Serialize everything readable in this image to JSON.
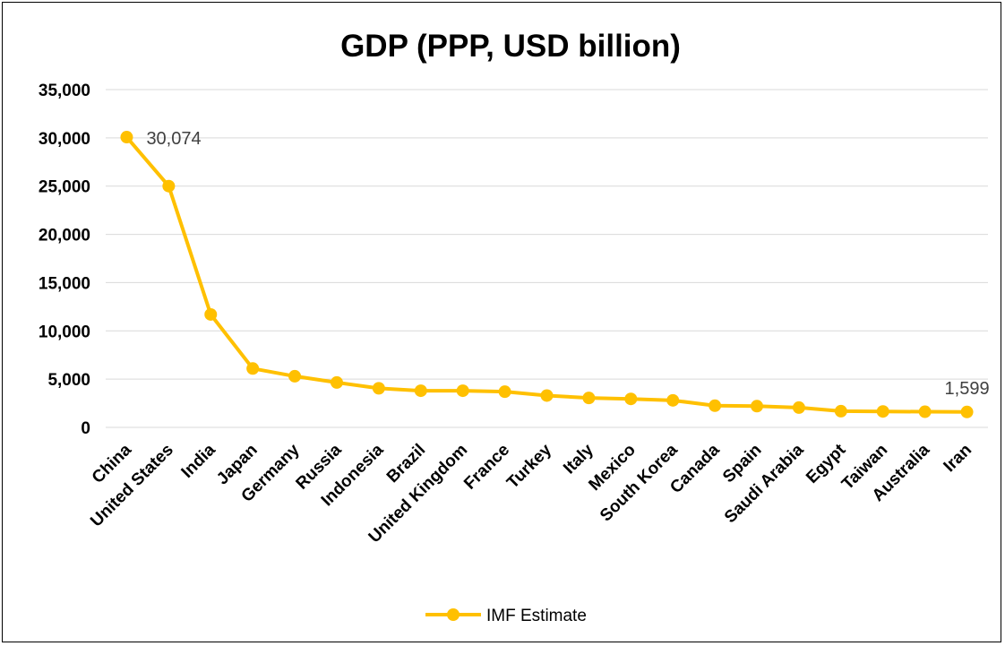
{
  "chart_data": {
    "type": "line",
    "title": "GDP (PPP, USD billion)",
    "xlabel": "",
    "ylabel": "",
    "ylim": [
      0,
      35000
    ],
    "yticks": [
      0,
      5000,
      10000,
      15000,
      20000,
      25000,
      30000,
      35000
    ],
    "ytick_labels": [
      "0",
      "5,000",
      "10,000",
      "15,000",
      "20,000",
      "25,000",
      "30,000",
      "35,000"
    ],
    "grid": true,
    "legend_position": "bottom",
    "categories": [
      "China",
      "United States",
      "India",
      "Japan",
      "Germany",
      "Russia",
      "Indonesia",
      "Brazil",
      "United Kingdom",
      "France",
      "Turkey",
      "Italy",
      "Mexico",
      "South Korea",
      "Canada",
      "Spain",
      "Saudi Arabia",
      "Egypt",
      "Taiwan",
      "Australia",
      "Iran"
    ],
    "series": [
      {
        "name": "IMF Estimate",
        "color": "#FFC000",
        "values": [
          30074,
          25000,
          11700,
          6100,
          5300,
          4650,
          4050,
          3800,
          3800,
          3700,
          3300,
          3050,
          2950,
          2800,
          2250,
          2200,
          2050,
          1680,
          1650,
          1620,
          1599
        ]
      }
    ],
    "data_labels": [
      {
        "index": 0,
        "text": "30,074"
      },
      {
        "index": 20,
        "text": "1,599"
      }
    ]
  }
}
